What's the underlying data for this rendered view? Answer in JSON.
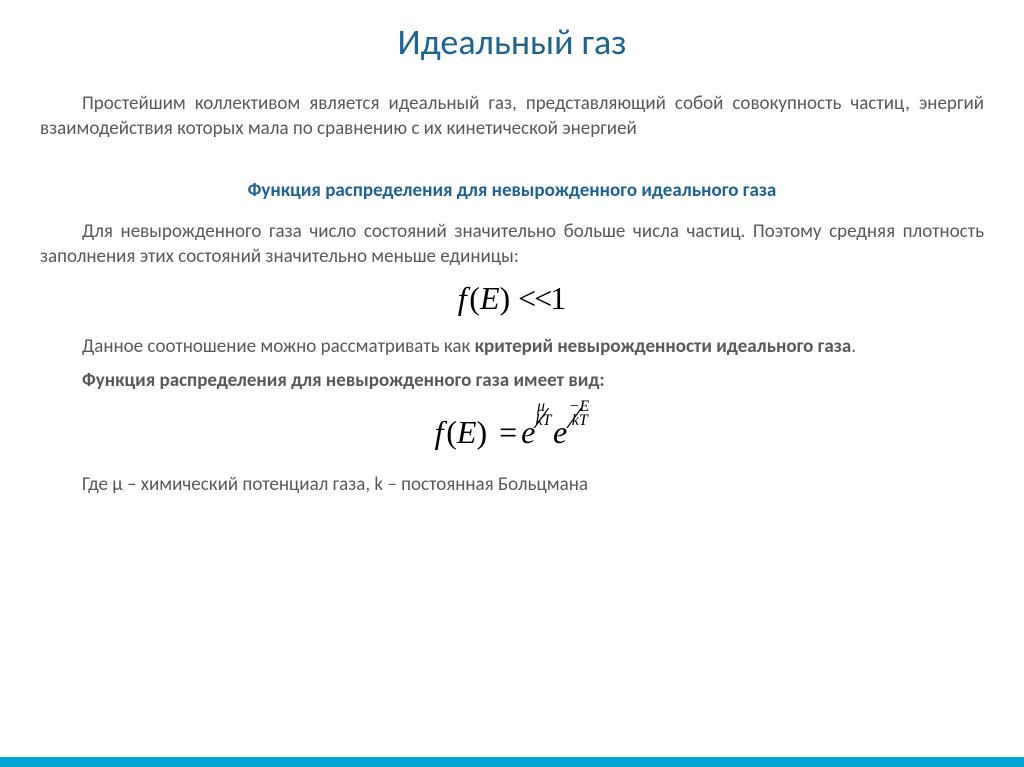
{
  "title": {
    "text": "Идеальный газ",
    "color": "#1f6391",
    "fontsize": 36
  },
  "intro": {
    "text": "Простейшим коллективом является идеальный газ, представляющий собой совокупность частиц, энергий взаимодействия которых мала по сравнению с их кинетической энергией",
    "color": "#595959"
  },
  "subheading": {
    "text": "Функция распределения для невырожденного идеального газа",
    "color": "#1f6391"
  },
  "para2": {
    "text": "Для невырожденного газа число состояний значительно больше числа частиц. Поэтому средняя плотность заполнения этих состояний значительно меньше единицы:",
    "color": "#595959"
  },
  "formula1": {
    "color": "#000000",
    "f": "f",
    "open": "(",
    "E": "E",
    "close": ")",
    "op": "<<",
    "one": "1"
  },
  "para3": {
    "prefix": "Данное соотношение можно рассматривать как ",
    "bold": "критерий невырожденности идеального газа",
    "suffix": ".",
    "color": "#595959"
  },
  "subheading2": {
    "text": "Функция распределения для невырожденного газа имеет вид:",
    "color": "#595959"
  },
  "formula2": {
    "color": "#000000",
    "f": "f",
    "open": "(",
    "E": "E",
    "close": ")",
    "eq": "=",
    "e": "e",
    "exp1_num": "μ",
    "exp1_den": "kT",
    "exp2_num": "−E",
    "exp2_den": "kT"
  },
  "footer": {
    "text": "Где μ – химический потенциал газа, k – постоянная Больцмана",
    "color": "#595959"
  },
  "colors": {
    "title": "#1f6391",
    "body": "#595959",
    "formula": "#000000",
    "border": "#00a5d8",
    "background": "#ffffff"
  }
}
